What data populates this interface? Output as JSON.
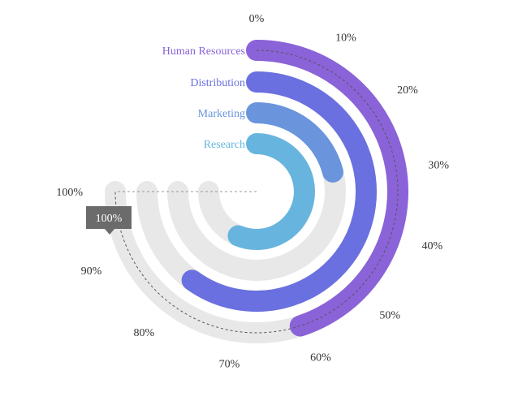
{
  "chart_data": {
    "type": "radial-bar",
    "start_angle_deg": 0,
    "end_angle_deg": 270,
    "axis_min": 0,
    "axis_max": 100,
    "tick_values": [
      0,
      10,
      20,
      30,
      40,
      50,
      60,
      70,
      80,
      90,
      100
    ],
    "tick_labels": [
      "0%",
      "10%",
      "20%",
      "30%",
      "40%",
      "50%",
      "60%",
      "70%",
      "80%",
      "90%",
      "100%"
    ],
    "categories": [
      "Human Resources",
      "Distribution",
      "Marketing",
      "Research"
    ],
    "values": [
      60,
      80,
      28,
      75
    ],
    "colors": [
      "#8a63d8",
      "#6a70df",
      "#6a95dc",
      "#67b5de"
    ],
    "track_color": "#e8e8e8",
    "cursor_value": 100,
    "tooltip_label": "100%"
  }
}
